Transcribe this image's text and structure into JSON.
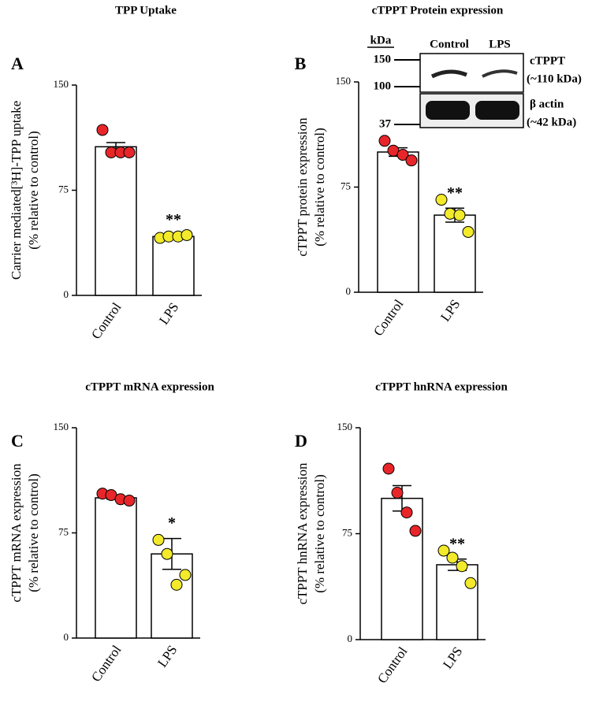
{
  "chart_data": [
    {
      "type": "bar",
      "panel": "A",
      "title": "TPP Uptake",
      "ylabel": [
        "Carrier mediated[³H]-TPP uptake",
        "(% relative to control)"
      ],
      "categories": [
        "Control",
        "LPS"
      ],
      "values": [
        106,
        42
      ],
      "errors": [
        3,
        1
      ],
      "points": [
        [
          118,
          102,
          102,
          102
        ],
        [
          41,
          42,
          42,
          43
        ]
      ],
      "colors": [
        "#e8262a",
        "#f2ea2a"
      ],
      "annotation": "**",
      "ylim": [
        0,
        150
      ],
      "yticks": [
        0,
        75,
        150
      ]
    },
    {
      "type": "bar",
      "panel": "B",
      "title": "cTPPT Protein expression",
      "ylabel": [
        "cTPPT protein expression",
        "(% relative to control)"
      ],
      "categories": [
        "Control",
        "LPS"
      ],
      "values": [
        100,
        55
      ],
      "errors": [
        3,
        5
      ],
      "points": [
        [
          108,
          101,
          98,
          94
        ],
        [
          66,
          56,
          55,
          43
        ]
      ],
      "colors": [
        "#e8262a",
        "#f2ea2a"
      ],
      "annotation": "**",
      "ylim": [
        0,
        150
      ],
      "yticks": [
        0,
        75,
        150
      ],
      "inset": {
        "kda_label": "kDa",
        "markers": [
          150,
          100,
          37
        ],
        "lanes": [
          "Control",
          "LPS"
        ],
        "bands": [
          {
            "name": "cTPPT",
            "size": "(~110 kDa)"
          },
          {
            "name": "β actin",
            "size": "(~42 kDa)"
          }
        ]
      }
    },
    {
      "type": "bar",
      "panel": "C",
      "title": "cTPPT mRNA expression",
      "ylabel": [
        "cTPPT mRNA expression",
        "(% relative to control)"
      ],
      "categories": [
        "Control",
        "LPS"
      ],
      "values": [
        100,
        60
      ],
      "errors": [
        1,
        11
      ],
      "points": [
        [
          103,
          102,
          99,
          98
        ],
        [
          70,
          60,
          38,
          45
        ]
      ],
      "colors": [
        "#e8262a",
        "#f2ea2a"
      ],
      "annotation": "*",
      "ylim": [
        0,
        150
      ],
      "yticks": [
        0,
        75,
        150
      ]
    },
    {
      "type": "bar",
      "panel": "D",
      "title": "cTPPT hnRNA expression",
      "ylabel": [
        "cTPPT hnRNA expression",
        "(% relative to control)"
      ],
      "categories": [
        "Control",
        "LPS"
      ],
      "values": [
        100,
        53
      ],
      "errors": [
        9,
        4
      ],
      "points": [
        [
          121,
          104,
          90,
          77
        ],
        [
          63,
          58,
          52,
          40
        ]
      ],
      "colors": [
        "#e8262a",
        "#f2ea2a"
      ],
      "annotation": "**",
      "ylim": [
        0,
        150
      ],
      "yticks": [
        0,
        75,
        150
      ]
    }
  ]
}
